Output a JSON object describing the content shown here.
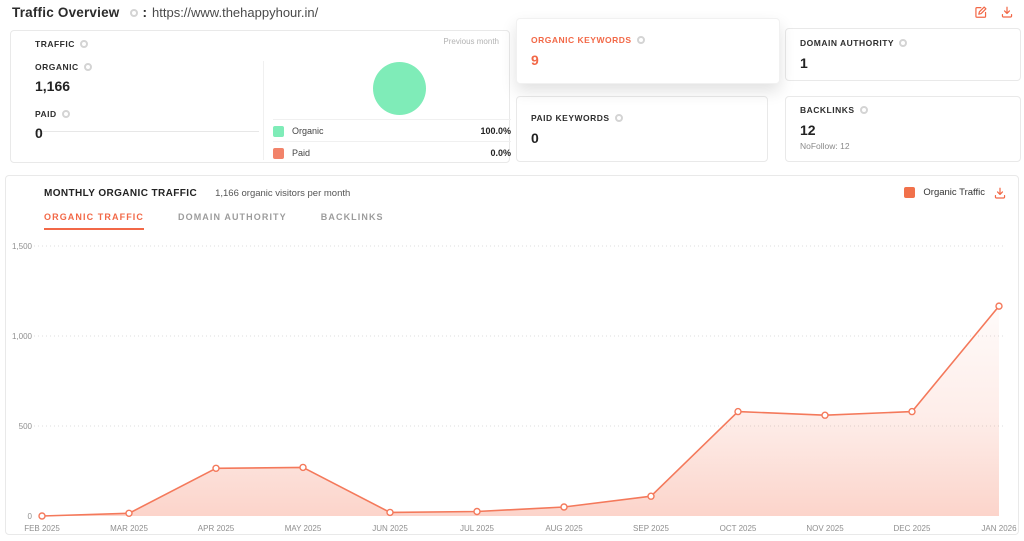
{
  "colors": {
    "accent": "#f26847",
    "line": "#f4795b",
    "organic_green": "#7fecb8",
    "paid_salmon": "#f2836a",
    "legend_square": "#f1714b",
    "grid": "#dcdcdc",
    "muted": "#9b9b9b"
  },
  "header": {
    "title": "Traffic Overview",
    "colon": ":",
    "url": "https://www.thehappyhour.in/"
  },
  "traffic_card": {
    "label": "TRAFFIC",
    "previous_month": "Previous month",
    "organic_label": "ORGANIC",
    "organic_value": "1,166",
    "paid_label": "PAID",
    "paid_value": "0"
  },
  "stat_cards": [
    {
      "label": "ORGANIC KEYWORDS",
      "value": "9"
    },
    {
      "label": "PAID KEYWORDS",
      "value": "0"
    },
    {
      "label": "DOMAIN AUTHORITY",
      "value": "1"
    },
    {
      "label": "BACKLINKS",
      "value": "12",
      "sub": "NoFollow: 12"
    }
  ],
  "monthly": {
    "title": "MONTHLY ORGANIC TRAFFIC",
    "subtitle": "1,166 organic visitors per month",
    "legend_label": "Organic Traffic",
    "tabs": [
      {
        "label": "ORGANIC TRAFFIC",
        "active": true
      },
      {
        "label": "DOMAIN AUTHORITY",
        "active": false
      },
      {
        "label": "BACKLINKS",
        "active": false
      }
    ]
  },
  "chart_data": [
    {
      "type": "pie",
      "labels": [
        "Organic",
        "Paid"
      ],
      "values": [
        100.0,
        0.0
      ],
      "value_labels": [
        "100.0%",
        "0.0%"
      ],
      "colors": [
        "#7fecb8",
        "#f2836a"
      ],
      "legend_position": "bottom",
      "note": "single full slice, Organic 100%"
    },
    {
      "type": "area",
      "title": "MONTHLY ORGANIC TRAFFIC",
      "x": [
        "FEB 2025",
        "MAR 2025",
        "APR 2025",
        "MAY 2025",
        "JUN 2025",
        "JUL 2025",
        "AUG 2025",
        "SEP 2025",
        "OCT 2025",
        "NOV 2025",
        "DEC 2025",
        "JAN 2026"
      ],
      "values": [
        0,
        15,
        265,
        270,
        20,
        25,
        50,
        110,
        580,
        560,
        580,
        1166
      ],
      "ylim": [
        0,
        1500
      ],
      "yticks": [
        0,
        500,
        1000,
        1500
      ],
      "ytick_labels": [
        "0",
        "500",
        "1,000",
        "1,500"
      ],
      "xlabel": "",
      "ylabel": "",
      "grid": "dotted-horizontal",
      "legend_position": "top-right",
      "marker": "open-circle",
      "fill": "vertical-gradient"
    }
  ]
}
